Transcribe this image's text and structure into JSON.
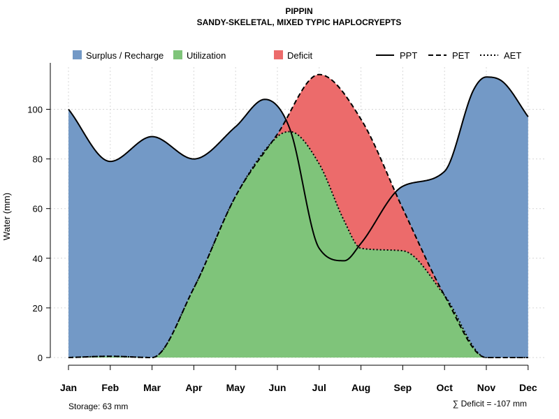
{
  "chart_data": {
    "type": "area",
    "title": "PIPPIN",
    "subtitle": "SANDY-SKELETAL, MIXED TYPIC HAPLOCRYEPTS",
    "xlabel": "",
    "ylabel": "Water (mm)",
    "ylim": [
      0,
      117
    ],
    "yticks": [
      0,
      20,
      40,
      60,
      80,
      100
    ],
    "grid": true,
    "legend": {
      "position": "top",
      "entries": [
        {
          "label": "Surplus / Recharge",
          "type": "fill",
          "color": "#7399c6"
        },
        {
          "label": "Utilization",
          "type": "fill",
          "color": "#7fc47a"
        },
        {
          "label": "Deficit",
          "type": "fill",
          "color": "#ec6b6b"
        },
        {
          "label": "PPT",
          "type": "line",
          "dash": "solid"
        },
        {
          "label": "PET",
          "type": "line",
          "dash": "dashed"
        },
        {
          "label": "AET",
          "type": "line",
          "dash": "dotted"
        }
      ]
    },
    "categories": [
      "Jan",
      "Feb",
      "Mar",
      "Apr",
      "May",
      "Jun",
      "Jul",
      "Aug",
      "Sep",
      "Oct",
      "Nov",
      "Dec"
    ],
    "series": [
      {
        "name": "PPT",
        "x": [
          1,
          2,
          3,
          4,
          5,
          5.7,
          6.3,
          7,
          7.6,
          8,
          9,
          10,
          10.7,
          11,
          11.4,
          12
        ],
        "values": [
          100,
          79,
          89,
          80,
          93,
          104,
          92,
          44,
          39,
          46,
          69,
          75,
          108,
          113,
          111,
          97
        ]
      },
      {
        "name": "PET",
        "x": [
          1,
          2,
          3,
          4,
          5,
          6,
          7,
          8,
          9,
          10,
          11,
          12
        ],
        "values": [
          0,
          0.5,
          0,
          28,
          65,
          90,
          114,
          96,
          60,
          25,
          0,
          0
        ]
      },
      {
        "name": "AET",
        "x": [
          1,
          2,
          3,
          4,
          5,
          6,
          6.3,
          7,
          7.6,
          8,
          9,
          10,
          11,
          12
        ],
        "values": [
          0,
          0.5,
          0,
          28,
          65,
          89,
          91,
          78,
          55,
          44,
          43,
          25,
          0,
          0
        ]
      }
    ],
    "colors": {
      "surplus": "#7399c6",
      "utilization": "#7fc47a",
      "deficit": "#ec6b6b"
    },
    "annotations": {
      "storage": "Storage: 63 mm",
      "deficit": "∑ Deficit = -107 mm"
    }
  }
}
